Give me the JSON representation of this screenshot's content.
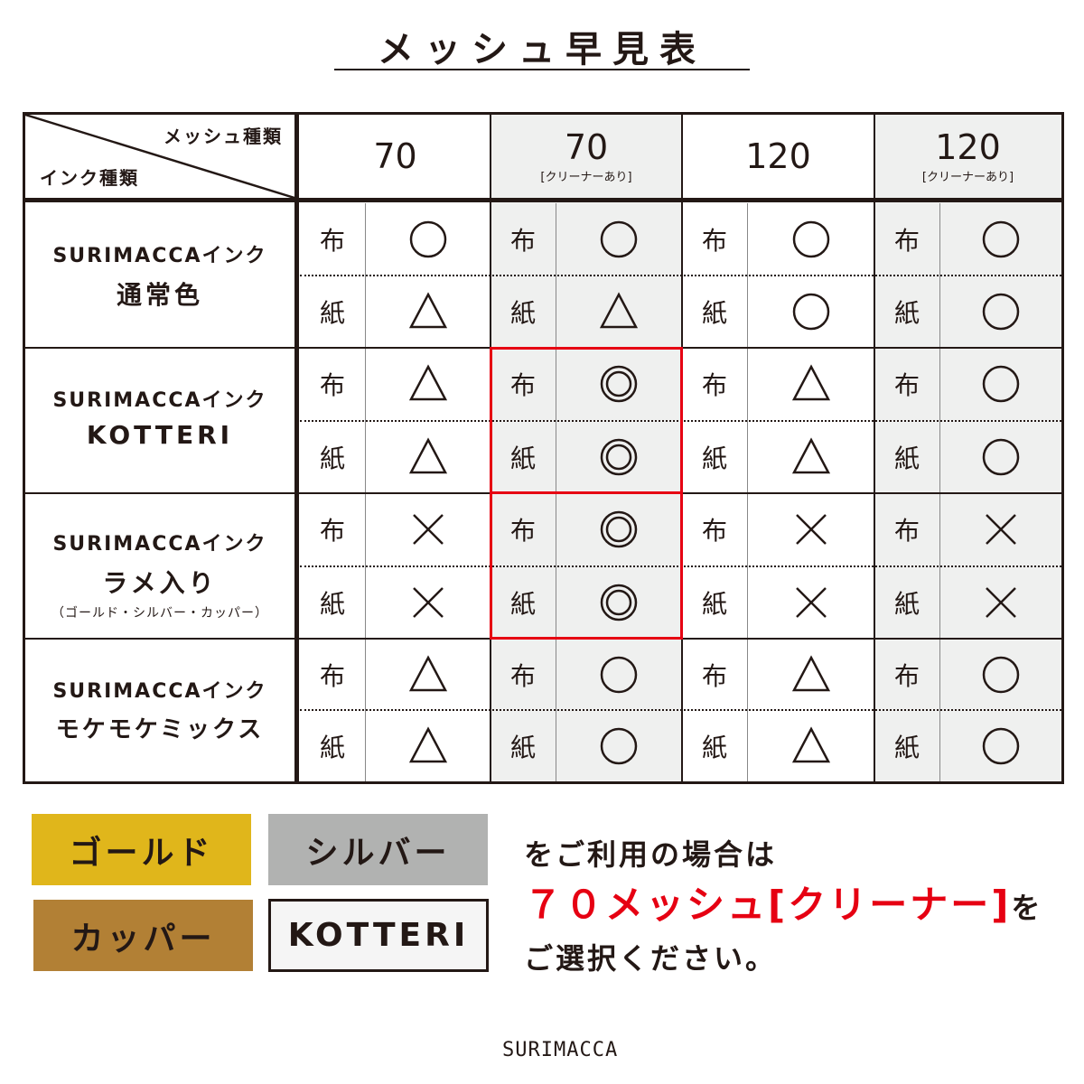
{
  "title": "メッシュ早見表",
  "corner": {
    "mesh_label": "メッシュ種類",
    "ink_label": "インク種類"
  },
  "columns": [
    {
      "mesh": "70",
      "sub": "",
      "shaded": false
    },
    {
      "mesh": "70",
      "sub": "[クリーナーあり]",
      "shaded": true
    },
    {
      "mesh": "120",
      "sub": "",
      "shaded": false
    },
    {
      "mesh": "120",
      "sub": "[クリーナーあり]",
      "shaded": true
    }
  ],
  "material_labels": [
    "布",
    "紙"
  ],
  "rows": [
    {
      "line1": "SURIMACCAインク",
      "line2": "通常色",
      "line3": "",
      "results": [
        [
          "circle",
          "triangle"
        ],
        [
          "circle",
          "triangle"
        ],
        [
          "circle",
          "circle"
        ],
        [
          "circle",
          "circle"
        ]
      ]
    },
    {
      "line1": "SURIMACCAインク",
      "line2": "KOTTERI",
      "line3": "",
      "results": [
        [
          "triangle",
          "triangle"
        ],
        [
          "double-circle",
          "double-circle"
        ],
        [
          "triangle",
          "triangle"
        ],
        [
          "circle",
          "circle"
        ]
      ]
    },
    {
      "line1": "SURIMACCAインク",
      "line2": "ラメ入り",
      "line3": "（ゴールド・シルバー・カッパー）",
      "results": [
        [
          "cross",
          "cross"
        ],
        [
          "double-circle",
          "double-circle"
        ],
        [
          "cross",
          "cross"
        ],
        [
          "cross",
          "cross"
        ]
      ]
    },
    {
      "line1": "SURIMACCAインク",
      "line2": "モケモケミックス",
      "line3": "",
      "results": [
        [
          "triangle",
          "triangle"
        ],
        [
          "circle",
          "circle"
        ],
        [
          "triangle",
          "triangle"
        ],
        [
          "circle",
          "circle"
        ]
      ]
    }
  ],
  "highlight": {
    "column": 1,
    "rows": [
      1,
      2
    ],
    "color": "#e60012"
  },
  "swatches": [
    {
      "label": "ゴールド",
      "color": "#e0b61b"
    },
    {
      "label": "シルバー",
      "color": "#b1b2b1"
    },
    {
      "label": "カッパー",
      "color": "#b28035"
    },
    {
      "label": "KOTTERI",
      "color": "#f5f5f5"
    }
  ],
  "note": {
    "line1": "をご利用の場合は",
    "highlight": "７０メッシュ[クリーナー]",
    "after": "を",
    "line3": "ご選択ください。"
  },
  "logo": "SURIMACCA"
}
